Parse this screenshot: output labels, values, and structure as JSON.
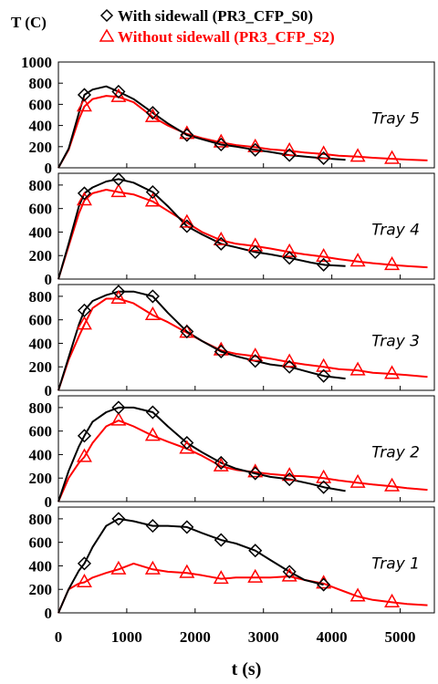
{
  "chart_data": {
    "type": "line",
    "y_axis_label": "T (C)",
    "x_axis_label": "t (s)",
    "xlim": [
      0,
      5500
    ],
    "x_ticks": [
      0,
      1000,
      2000,
      3000,
      4000,
      5000
    ],
    "legend": [
      {
        "name": "With sidewall (PR3_CFP_S0)",
        "color": "#000000",
        "marker": "diamond"
      },
      {
        "name": "Without sidewall (PR3_CFP_S2)",
        "color": "#ff0000",
        "marker": "triangle"
      }
    ],
    "panels": [
      {
        "label": "Tray 5",
        "ylim": [
          0,
          1000
        ],
        "y_ticks": [
          0,
          200,
          400,
          600,
          800,
          1000
        ],
        "series": [
          {
            "name": "With sidewall (PR3_CFP_S0)",
            "color": "#000000",
            "marker": "diamond",
            "x": [
              0,
              150,
              300,
              380,
              500,
              700,
              880,
              1100,
              1380,
              1600,
              1880,
              2100,
              2380,
              2600,
              2880,
              3100,
              3380,
              3700,
              3900,
              4200
            ],
            "y": [
              0,
              180,
              520,
              690,
              740,
              770,
              720,
              650,
              520,
              420,
              310,
              270,
              220,
              200,
              170,
              150,
              120,
              100,
              90,
              75
            ]
          },
          {
            "name": "Without sidewall (PR3_CFP_S2)",
            "color": "#ff0000",
            "marker": "triangle",
            "x": [
              0,
              150,
              300,
              380,
              500,
              700,
              880,
              1100,
              1380,
              1600,
              1880,
              2100,
              2380,
              2600,
              2880,
              3100,
              3380,
              3600,
              3880,
              4100,
              4380,
              4600,
              4880,
              5100,
              5400
            ],
            "y": [
              0,
              170,
              460,
              580,
              650,
              680,
              670,
              620,
              480,
              400,
              320,
              280,
              240,
              215,
              195,
              175,
              160,
              145,
              130,
              115,
              105,
              95,
              85,
              78,
              70
            ]
          }
        ],
        "marker_x": [
          380,
          880,
          1380,
          1880,
          2380,
          2880,
          3380,
          3880,
          4380,
          4880
        ]
      },
      {
        "label": "Tray 4",
        "ylim": [
          0,
          900
        ],
        "y_ticks": [
          0,
          200,
          400,
          600,
          800
        ],
        "series": [
          {
            "name": "With sidewall (PR3_CFP_S0)",
            "color": "#000000",
            "marker": "diamond",
            "x": [
              0,
              150,
              300,
              380,
              500,
              700,
              880,
              1100,
              1380,
              1600,
              1880,
              2100,
              2380,
              2600,
              2880,
              3100,
              3380,
              3700,
              3900,
              4200
            ],
            "y": [
              0,
              300,
              620,
              730,
              780,
              830,
              850,
              820,
              740,
              620,
              450,
              380,
              300,
              270,
              230,
              210,
              180,
              140,
              120,
              110
            ]
          },
          {
            "name": "Without sidewall (PR3_CFP_S2)",
            "color": "#ff0000",
            "marker": "triangle",
            "x": [
              0,
              150,
              300,
              380,
              500,
              700,
              880,
              1100,
              1380,
              1600,
              1880,
              2100,
              2380,
              2600,
              2880,
              3100,
              3380,
              3600,
              3880,
              4100,
              4380,
              4600,
              4880,
              5100,
              5400
            ],
            "y": [
              0,
              280,
              560,
              670,
              730,
              760,
              740,
              720,
              660,
              580,
              480,
              400,
              330,
              300,
              280,
              260,
              230,
              210,
              190,
              170,
              150,
              135,
              120,
              110,
              100
            ]
          }
        ],
        "marker_x": [
          380,
          880,
          1380,
          1880,
          2380,
          2880,
          3380,
          3880,
          4380,
          4880
        ]
      },
      {
        "label": "Tray 3",
        "ylim": [
          0,
          900
        ],
        "y_ticks": [
          0,
          200,
          400,
          600,
          800
        ],
        "series": [
          {
            "name": "With sidewall (PR3_CFP_S0)",
            "color": "#000000",
            "marker": "diamond",
            "x": [
              0,
              150,
              300,
              380,
              500,
              700,
              880,
              1100,
              1380,
              1600,
              1880,
              2100,
              2380,
              2600,
              2880,
              3100,
              3380,
              3700,
              3900,
              4200
            ],
            "y": [
              0,
              280,
              560,
              680,
              760,
              810,
              840,
              840,
              800,
              660,
              500,
              420,
              330,
              290,
              250,
              220,
              200,
              150,
              120,
              100
            ]
          },
          {
            "name": "Without sidewall (PR3_CFP_S2)",
            "color": "#ff0000",
            "marker": "triangle",
            "x": [
              0,
              150,
              300,
              380,
              500,
              700,
              880,
              1100,
              1380,
              1600,
              1880,
              2100,
              2380,
              2600,
              2880,
              3100,
              3380,
              3600,
              3880,
              4100,
              4380,
              4600,
              4880,
              5100,
              5400
            ],
            "y": [
              0,
              260,
              460,
              560,
              700,
              780,
              780,
              740,
              640,
              580,
              490,
              420,
              340,
              310,
              290,
              270,
              240,
              220,
              200,
              180,
              170,
              150,
              140,
              130,
              115
            ]
          }
        ],
        "marker_x": [
          380,
          880,
          1380,
          1880,
          2380,
          2880,
          3380,
          3880,
          4380,
          4880
        ]
      },
      {
        "label": "Tray 2",
        "ylim": [
          0,
          900
        ],
        "y_ticks": [
          0,
          200,
          400,
          600,
          800
        ],
        "series": [
          {
            "name": "With sidewall (PR3_CFP_S0)",
            "color": "#000000",
            "marker": "diamond",
            "x": [
              0,
              150,
              300,
              380,
              500,
              700,
              880,
              1100,
              1380,
              1600,
              1880,
              2100,
              2380,
              2600,
              2880,
              3100,
              3380,
              3700,
              3900,
              4200
            ],
            "y": [
              0,
              260,
              470,
              560,
              680,
              760,
              800,
              800,
              760,
              640,
              500,
              420,
              330,
              280,
              240,
              210,
              190,
              150,
              120,
              90
            ]
          },
          {
            "name": "Without sidewall (PR3_CFP_S2)",
            "color": "#ff0000",
            "marker": "triangle",
            "x": [
              0,
              150,
              300,
              380,
              500,
              700,
              880,
              1100,
              1380,
              1600,
              1880,
              2100,
              2380,
              2600,
              2880,
              3100,
              3380,
              3600,
              3880,
              4100,
              4380,
              4600,
              4880,
              5100,
              5400
            ],
            "y": [
              0,
              200,
              330,
              380,
              500,
              640,
              690,
              640,
              560,
              510,
              450,
              390,
              300,
              270,
              250,
              235,
              220,
              215,
              200,
              180,
              160,
              145,
              130,
              115,
              100
            ]
          }
        ],
        "marker_x": [
          380,
          880,
          1380,
          1880,
          2380,
          2880,
          3380,
          3880,
          4380,
          4880
        ]
      },
      {
        "label": "Tray 1",
        "ylim": [
          0,
          900
        ],
        "y_ticks": [
          0,
          200,
          400,
          600,
          800
        ],
        "series": [
          {
            "name": "With sidewall (PR3_CFP_S0)",
            "color": "#000000",
            "marker": "diamond",
            "x": [
              0,
              150,
              300,
              380,
              500,
              700,
              880,
              1100,
              1380,
              1600,
              1880,
              2100,
              2380,
              2600,
              2880,
              3100,
              3380,
              3600,
              3880
            ],
            "y": [
              0,
              200,
              360,
              420,
              560,
              740,
              800,
              780,
              740,
              740,
              730,
              680,
              620,
              590,
              530,
              450,
              350,
              280,
              240
            ]
          },
          {
            "name": "Without sidewall (PR3_CFP_S2)",
            "color": "#ff0000",
            "marker": "triangle",
            "x": [
              0,
              150,
              300,
              380,
              500,
              700,
              880,
              1100,
              1380,
              1600,
              1880,
              2100,
              2380,
              2600,
              2880,
              3100,
              3380,
              3600,
              3880,
              4100,
              4380,
              4600,
              4880,
              5100,
              5400
            ],
            "y": [
              0,
              200,
              250,
              260,
              300,
              340,
              370,
              420,
              370,
              350,
              340,
              320,
              290,
              300,
              300,
              300,
              310,
              280,
              250,
              200,
              140,
              110,
              90,
              75,
              65
            ]
          }
        ],
        "marker_x": [
          380,
          880,
          1380,
          1880,
          2380,
          2880,
          3380,
          3880,
          4380,
          4880
        ]
      }
    ]
  }
}
